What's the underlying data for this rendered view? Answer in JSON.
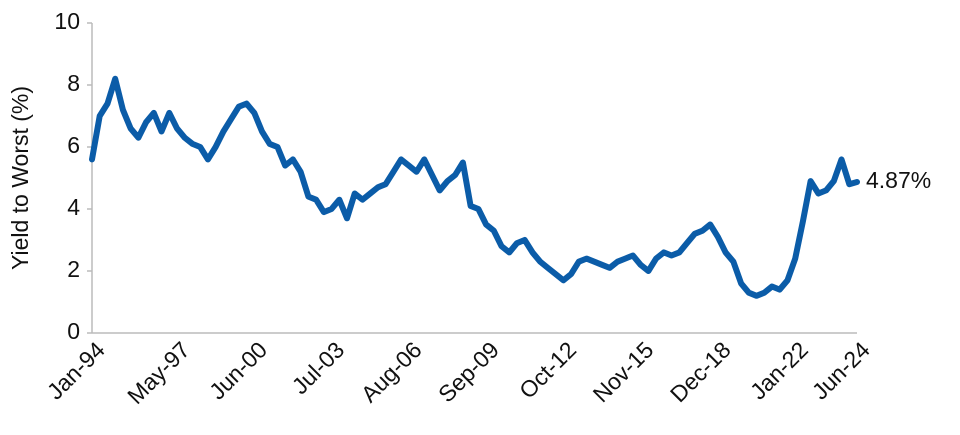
{
  "chart_data": {
    "type": "line",
    "y_label": "Yield to Worst (%)",
    "categories": [
      "Jan-94",
      null,
      null,
      null,
      null,
      null,
      null,
      null,
      null,
      null,
      null,
      "May-97",
      null,
      null,
      null,
      null,
      null,
      null,
      null,
      null,
      null,
      "Jun-00",
      null,
      null,
      null,
      null,
      null,
      null,
      null,
      null,
      null,
      "Jul-03",
      null,
      null,
      null,
      null,
      null,
      null,
      null,
      null,
      null,
      "Aug-06",
      null,
      null,
      null,
      null,
      null,
      null,
      null,
      null,
      null,
      "Sep-09",
      null,
      null,
      null,
      null,
      null,
      null,
      null,
      null,
      null,
      "Oct-12",
      null,
      null,
      null,
      null,
      null,
      null,
      null,
      null,
      null,
      "Nov-15",
      null,
      null,
      null,
      null,
      null,
      null,
      null,
      null,
      null,
      "Dec-18",
      null,
      null,
      null,
      null,
      null,
      null,
      null,
      null,
      null,
      "Jan-22",
      null,
      null,
      null,
      null,
      null,
      null,
      null,
      "Jun-24"
    ],
    "values": [
      5.6,
      7.0,
      7.4,
      8.2,
      7.2,
      6.6,
      6.3,
      6.8,
      7.1,
      6.5,
      7.1,
      6.6,
      6.3,
      6.1,
      6.0,
      5.6,
      6.0,
      6.5,
      6.9,
      7.3,
      7.4,
      7.1,
      6.5,
      6.1,
      6.0,
      5.4,
      5.6,
      5.2,
      4.4,
      4.3,
      3.9,
      4.0,
      4.3,
      3.7,
      4.5,
      4.3,
      4.5,
      4.7,
      4.8,
      5.2,
      5.6,
      5.4,
      5.2,
      5.6,
      5.1,
      4.6,
      4.9,
      5.1,
      5.5,
      4.1,
      4.0,
      3.5,
      3.3,
      2.8,
      2.6,
      2.9,
      3.0,
      2.6,
      2.3,
      2.1,
      1.9,
      1.7,
      1.9,
      2.3,
      2.4,
      2.3,
      2.2,
      2.1,
      2.3,
      2.4,
      2.5,
      2.2,
      2.0,
      2.4,
      2.6,
      2.5,
      2.6,
      2.9,
      3.2,
      3.3,
      3.5,
      3.1,
      2.6,
      2.3,
      1.6,
      1.3,
      1.2,
      1.3,
      1.5,
      1.4,
      1.7,
      2.4,
      3.6,
      4.9,
      4.5,
      4.6,
      4.9,
      5.6,
      4.8,
      4.87
    ],
    "value_labels": [
      null,
      null,
      null,
      null,
      null,
      null,
      null,
      null,
      null,
      null,
      null,
      null,
      null,
      null,
      null,
      null,
      null,
      null,
      null,
      null,
      null,
      null,
      null,
      null,
      null,
      null,
      null,
      null,
      null,
      null,
      null,
      null,
      null,
      null,
      null,
      null,
      null,
      null,
      null,
      null,
      null,
      null,
      null,
      null,
      null,
      null,
      null,
      null,
      null,
      null,
      null,
      null,
      null,
      null,
      null,
      null,
      null,
      null,
      null,
      null,
      null,
      null,
      null,
      null,
      null,
      null,
      null,
      null,
      null,
      null,
      null,
      null,
      null,
      null,
      null,
      null,
      null,
      null,
      null,
      null,
      null,
      null,
      null,
      null,
      null,
      null,
      null,
      null,
      null,
      null,
      null,
      null,
      null,
      null,
      null,
      null,
      null,
      null,
      null,
      "4.87%"
    ],
    "color": "#0b5ca8",
    "ylim": [
      0,
      10
    ],
    "yticks": [
      0,
      2,
      4,
      6,
      8,
      10
    ],
    "grid": false
  }
}
